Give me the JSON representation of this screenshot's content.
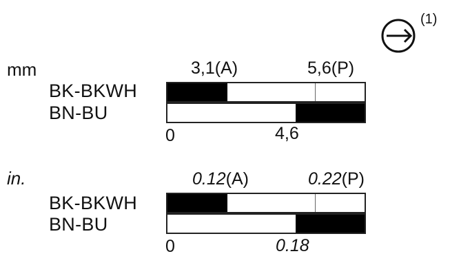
{
  "direction_marker": {
    "icon": "arrow-right-circle-icon",
    "note": "(1)"
  },
  "metric": {
    "unit": "mm",
    "marker_a": "3,1",
    "marker_a_suffix": "(A)",
    "marker_p": "5,6",
    "marker_p_suffix": "(P)",
    "rows": [
      {
        "label": "BK-BKWH",
        "filled_from": 0,
        "filled_to": 3.1
      },
      {
        "label": "BN-BU",
        "filled_from": 4.6,
        "filled_to": 5.6
      }
    ],
    "scale_start": "0",
    "scale_mid": "4,6"
  },
  "imperial": {
    "unit": "in.",
    "marker_a": "0.12",
    "marker_a_suffix": "(A)",
    "marker_p": "0.22",
    "marker_p_suffix": "(P)",
    "rows": [
      {
        "label": "BK-BKWH",
        "filled_from": 0,
        "filled_to": 0.12
      },
      {
        "label": "BN-BU",
        "filled_from": 0.18,
        "filled_to": 0.22
      }
    ],
    "scale_start": "0",
    "scale_mid": "0.18"
  },
  "colors": {
    "fill": "#000000",
    "outline": "#222222",
    "text": "#111111"
  }
}
